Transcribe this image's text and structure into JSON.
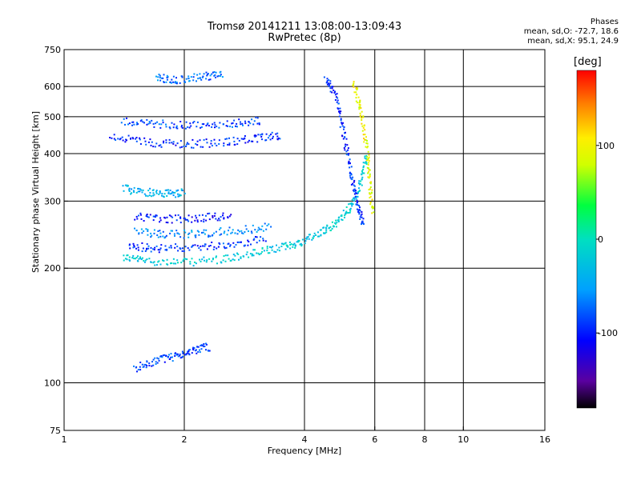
{
  "chart_data": {
    "type": "scatter",
    "title": "Tromsø 20141211 13:08:00-13:09:43",
    "subtitle": "RwPretec (8p)",
    "xlabel": "Frequency [MHz]",
    "ylabel": "Stationary phase Virtual Height [km]",
    "x_scale": "log",
    "y_scale": "log",
    "xlim": [
      1,
      16
    ],
    "ylim": [
      75,
      750
    ],
    "x_ticks": [
      "1",
      "2",
      "4",
      "6",
      "8",
      "10",
      "16"
    ],
    "x_tick_values": [
      1,
      2,
      4,
      6,
      8,
      10,
      16
    ],
    "y_ticks": [
      "75",
      "100",
      "200",
      "300",
      "400",
      "500",
      "600",
      "750"
    ],
    "y_tick_values": [
      75,
      100,
      200,
      300,
      400,
      500,
      600,
      750
    ],
    "grid_x": [
      2,
      4,
      6,
      8,
      10
    ],
    "grid_y": [
      100,
      200,
      300,
      400,
      500,
      600
    ],
    "grid": true,
    "colorbar": {
      "title": "[deg]",
      "range": [
        -180,
        180
      ],
      "ticks": [
        "100",
        "0",
        "-100"
      ],
      "tick_values": [
        100,
        0,
        -100
      ]
    },
    "stats": {
      "heading": "Phases",
      "line_o": "mean, sd,O: -72.7, 18.6",
      "line_x": "mean, sd,X:  95.1, 24.9"
    },
    "traces": [
      {
        "x": [
          1.4,
          1.6,
          2.0,
          2.5,
          3.0,
          3.5,
          3.9,
          4.4,
          4.8,
          5.2,
          5.5,
          5.7
        ],
        "y": [
          215,
          210,
          208,
          212,
          220,
          228,
          235,
          250,
          265,
          290,
          330,
          400
        ],
        "phase": -20
      },
      {
        "x": [
          1.45,
          1.7,
          2.1,
          2.6,
          3.2
        ],
        "y": [
          230,
          226,
          228,
          232,
          240
        ],
        "phase": -90
      },
      {
        "x": [
          1.5,
          1.8,
          2.2,
          2.7,
          3.3
        ],
        "y": [
          250,
          246,
          248,
          252,
          258
        ],
        "phase": -60
      },
      {
        "x": [
          1.5,
          1.8,
          2.2,
          2.6
        ],
        "y": [
          275,
          270,
          272,
          276
        ],
        "phase": -100
      },
      {
        "x": [
          1.4,
          1.6,
          1.8,
          2.0
        ],
        "y": [
          325,
          318,
          315,
          318
        ],
        "phase": -40
      },
      {
        "x": [
          1.3,
          1.6,
          2.0,
          2.5,
          3.0,
          3.5
        ],
        "y": [
          445,
          430,
          425,
          430,
          440,
          450
        ],
        "phase": -95
      },
      {
        "x": [
          1.4,
          1.7,
          2.1,
          2.6,
          3.1
        ],
        "y": [
          490,
          480,
          478,
          482,
          490
        ],
        "phase": -85
      },
      {
        "x": [
          1.7,
          1.9,
          2.2,
          2.5
        ],
        "y": [
          635,
          628,
          640,
          645
        ],
        "phase": -70
      },
      {
        "x": [
          4.5,
          4.8,
          5.0,
          5.2,
          5.4,
          5.6
        ],
        "y": [
          640,
          560,
          450,
          360,
          300,
          260
        ],
        "phase": -95
      },
      {
        "x": [
          5.3,
          5.5,
          5.7,
          5.8,
          5.9
        ],
        "y": [
          620,
          520,
          420,
          340,
          280
        ],
        "phase": 95
      },
      {
        "x": [
          1.5,
          1.7,
          1.9,
          2.1,
          2.3
        ],
        "y": [
          110,
          115,
          118,
          122,
          125
        ],
        "phase": -85
      }
    ]
  }
}
